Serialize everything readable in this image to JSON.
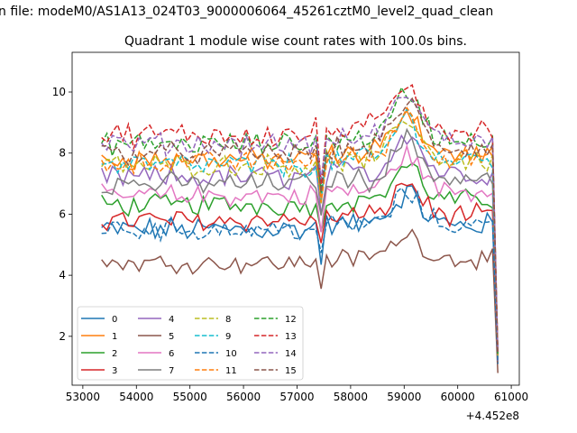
{
  "figure": {
    "suptitle": "n file: modeM0/AS1A13_024T03_9000006064_45261cztM0_level2_quad_clean"
  },
  "chart_data": {
    "type": "line",
    "title": "Quadrant 1 module wise count rates with 100.0s bins.",
    "xlabel": "",
    "ylabel": "",
    "x_offset_label": "+4.452e8",
    "x_start": 53350,
    "x_step": 100,
    "x_end": 60750,
    "xlim": [
      52800,
      61150
    ],
    "ylim": [
      0.4,
      11.3
    ],
    "xticks": [
      53000,
      54000,
      55000,
      56000,
      57000,
      58000,
      59000,
      60000,
      61000
    ],
    "yticks": [
      2,
      4,
      6,
      8,
      10
    ],
    "legend": {
      "position": "lower-left",
      "ncol": 4
    },
    "series": [
      {
        "name": "0",
        "color": "#1f77b4",
        "dash": "solid",
        "base": 5.5,
        "amp": 0.35,
        "end": 1.1
      },
      {
        "name": "1",
        "color": "#ff7f0e",
        "dash": "solid",
        "base": 7.8,
        "amp": 0.3,
        "end": 1.3
      },
      {
        "name": "2",
        "color": "#2ca02c",
        "dash": "solid",
        "base": 6.3,
        "amp": 0.3,
        "end": 1.2
      },
      {
        "name": "3",
        "color": "#d62728",
        "dash": "solid",
        "base": 5.8,
        "amp": 0.3,
        "end": 1.2
      },
      {
        "name": "4",
        "color": "#9467bd",
        "dash": "solid",
        "base": 7.2,
        "amp": 0.35,
        "end": 1.3
      },
      {
        "name": "5",
        "color": "#8c564b",
        "dash": "solid",
        "base": 4.4,
        "amp": 0.25,
        "end": 0.8
      },
      {
        "name": "6",
        "color": "#e377c2",
        "dash": "solid",
        "base": 6.6,
        "amp": 0.3,
        "end": 1.2
      },
      {
        "name": "7",
        "color": "#7f7f7f",
        "dash": "solid",
        "base": 7.0,
        "amp": 0.3,
        "end": 1.3
      },
      {
        "name": "8",
        "color": "#bcbd22",
        "dash": "dashed",
        "base": 7.6,
        "amp": 0.3,
        "end": 1.3
      },
      {
        "name": "9",
        "color": "#17becf",
        "dash": "dashed",
        "base": 7.6,
        "amp": 0.35,
        "end": 1.4
      },
      {
        "name": "10",
        "color": "#1f77b4",
        "dash": "dashed",
        "base": 5.5,
        "amp": 0.3,
        "end": 1.1
      },
      {
        "name": "11",
        "color": "#ff7f0e",
        "dash": "dashed",
        "base": 7.7,
        "amp": 0.3,
        "end": 1.4
      },
      {
        "name": "12",
        "color": "#2ca02c",
        "dash": "dashed",
        "base": 8.3,
        "amp": 0.3,
        "end": 1.4
      },
      {
        "name": "13",
        "color": "#d62728",
        "dash": "dashed",
        "base": 8.6,
        "amp": 0.35,
        "end": 1.5
      },
      {
        "name": "14",
        "color": "#9467bd",
        "dash": "dashed",
        "base": 8.3,
        "amp": 0.3,
        "end": 1.5
      },
      {
        "name": "15",
        "color": "#8c564b",
        "dash": "dashed",
        "base": 8.0,
        "amp": 0.3,
        "end": 1.4
      }
    ]
  }
}
